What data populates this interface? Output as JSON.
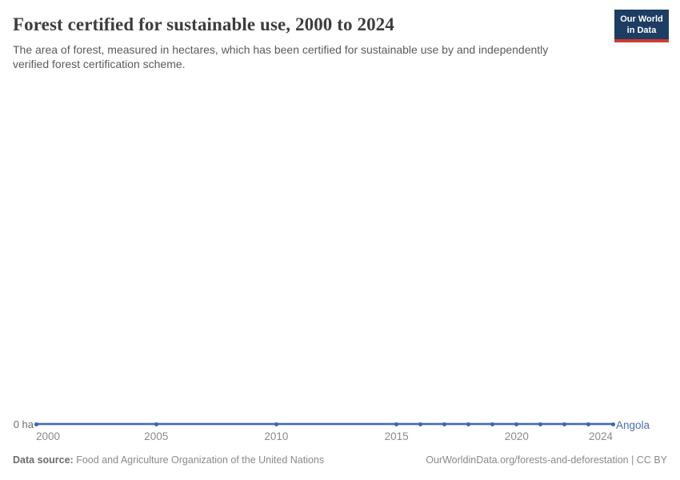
{
  "header": {
    "title": "Forest certified for sustainable use, 2000 to 2024",
    "subtitle": "The area of forest, measured in hectares, which has been certified for sustainable use by and independently verified forest certification scheme.",
    "logo": {
      "line1": "Our World",
      "line2": "in Data"
    }
  },
  "chart_data": {
    "type": "line",
    "title": "Forest certified for sustainable use, 2000 to 2024",
    "unit": "ha",
    "xlim": [
      2000,
      2024
    ],
    "ylim": [
      0,
      0
    ],
    "grid": false,
    "x_ticks": [
      "2000",
      "2005",
      "2010",
      "2015",
      "2020",
      "2024"
    ],
    "y_tick_label": "0 ha",
    "entity_label": "Angola",
    "series": [
      {
        "name": "Angola",
        "color": "#3f66ae",
        "x": [
          2000,
          2005,
          2010,
          2015,
          2016,
          2017,
          2018,
          2019,
          2020,
          2021,
          2022,
          2023,
          2024
        ],
        "values": [
          0,
          0,
          0,
          0,
          0,
          0,
          0,
          0,
          0,
          0,
          0,
          0,
          0
        ]
      }
    ]
  },
  "footer": {
    "source_label": "Data source:",
    "source_text": "Food and Agriculture Organization of the United Nations",
    "link_text": "OurWorldinData.org/forests-and-deforestation | CC BY"
  },
  "colors": {
    "line": "#3f66ae",
    "entity_label": "#4a6fb1",
    "logo_bg": "#1d3d63",
    "logo_red": "#cf3a31",
    "title": "#3d3d3d",
    "subtitle": "#5b5b5b",
    "axis_text": "#8b8b8b"
  }
}
